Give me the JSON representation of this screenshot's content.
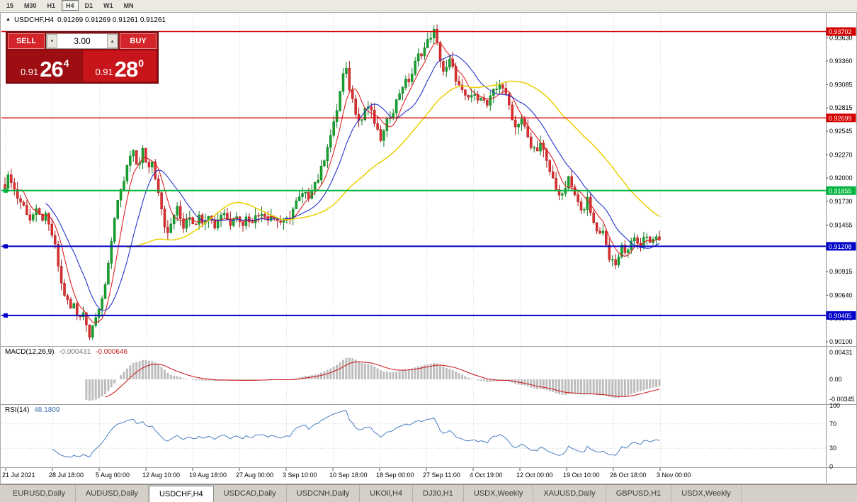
{
  "toolbar": {
    "timeframes": [
      "15",
      "M30",
      "H1",
      "H4",
      "D1",
      "W1",
      "MN"
    ],
    "active": "H4"
  },
  "chart_header": {
    "expand_glyph": "▲",
    "symbol": "USDCHF,H4",
    "ohlc": "0.91269 0.91269 0.91261 0.91261"
  },
  "trade_widget": {
    "sell_label": "SELL",
    "buy_label": "BUY",
    "volume": "3.00",
    "vol_down_glyph": "▾",
    "vol_up_glyph": "▴",
    "sell_price": {
      "small": "0.91",
      "big": "26",
      "sup": "4"
    },
    "buy_price": {
      "small": "0.91",
      "big": "28",
      "sup": "0"
    }
  },
  "chart_data": {
    "type": "candlestick",
    "symbol": "USDCHF",
    "timeframe": "H4",
    "open": "0.91269",
    "high": "0.91269",
    "low": "0.91261",
    "close": "0.91261",
    "ylim": [
      0.90058,
      0.93904
    ],
    "y_ticks": [
      "0.93630",
      "0.93360",
      "0.93085",
      "0.92815",
      "0.92545",
      "0.92270",
      "0.92000",
      "0.91730",
      "0.91455",
      "0.91185",
      "0.90915",
      "0.90640",
      "0.90370",
      "0.90100"
    ],
    "h_lines": [
      {
        "price": 0.93702,
        "label": "0.93702",
        "color": "#d40000",
        "width": 1.4,
        "handle": false
      },
      {
        "price": 0.92699,
        "label": "0.92699",
        "color": "#d40000",
        "width": 1.4,
        "handle": false
      },
      {
        "price": 0.91855,
        "label": "0.91855",
        "color": "#00b43c",
        "width": 2,
        "handle": true
      },
      {
        "price": 0.91208,
        "label": "0.91208",
        "color": "#0000c8",
        "width": 2,
        "handle": true
      },
      {
        "price": 0.90405,
        "label": "0.90405",
        "color": "#0000c8",
        "width": 2,
        "handle": true
      }
    ],
    "num_candles": 210,
    "price_path_anchors": [
      [
        0.0,
        0.9193
      ],
      [
        0.008,
        0.92
      ],
      [
        0.018,
        0.9182
      ],
      [
        0.028,
        0.9165
      ],
      [
        0.038,
        0.9155
      ],
      [
        0.046,
        0.9162
      ],
      [
        0.054,
        0.915
      ],
      [
        0.062,
        0.9158
      ],
      [
        0.07,
        0.9138
      ],
      [
        0.078,
        0.9112
      ],
      [
        0.086,
        0.908
      ],
      [
        0.094,
        0.9058
      ],
      [
        0.1,
        0.9045
      ],
      [
        0.106,
        0.9055
      ],
      [
        0.112,
        0.9038
      ],
      [
        0.118,
        0.9048
      ],
      [
        0.124,
        0.9028
      ],
      [
        0.13,
        0.902
      ],
      [
        0.136,
        0.9042
      ],
      [
        0.142,
        0.9035
      ],
      [
        0.148,
        0.9055
      ],
      [
        0.155,
        0.909
      ],
      [
        0.163,
        0.913
      ],
      [
        0.171,
        0.9165
      ],
      [
        0.179,
        0.9192
      ],
      [
        0.187,
        0.9212
      ],
      [
        0.195,
        0.923
      ],
      [
        0.203,
        0.9215
      ],
      [
        0.21,
        0.9233
      ],
      [
        0.217,
        0.9207
      ],
      [
        0.224,
        0.9225
      ],
      [
        0.232,
        0.9195
      ],
      [
        0.24,
        0.916
      ],
      [
        0.248,
        0.9135
      ],
      [
        0.256,
        0.9152
      ],
      [
        0.264,
        0.9163
      ],
      [
        0.272,
        0.9146
      ],
      [
        0.28,
        0.9157
      ],
      [
        0.288,
        0.9147
      ],
      [
        0.296,
        0.9158
      ],
      [
        0.304,
        0.9148
      ],
      [
        0.312,
        0.916
      ],
      [
        0.32,
        0.9146
      ],
      [
        0.328,
        0.9154
      ],
      [
        0.336,
        0.9161
      ],
      [
        0.344,
        0.9149
      ],
      [
        0.352,
        0.9158
      ],
      [
        0.36,
        0.9147
      ],
      [
        0.368,
        0.9155
      ],
      [
        0.376,
        0.9147
      ],
      [
        0.384,
        0.9157
      ],
      [
        0.392,
        0.9163
      ],
      [
        0.4,
        0.915
      ],
      [
        0.408,
        0.916
      ],
      [
        0.416,
        0.9152
      ],
      [
        0.424,
        0.9143
      ],
      [
        0.432,
        0.9155
      ],
      [
        0.44,
        0.9163
      ],
      [
        0.448,
        0.9172
      ],
      [
        0.456,
        0.9185
      ],
      [
        0.464,
        0.9178
      ],
      [
        0.472,
        0.9192
      ],
      [
        0.48,
        0.9205
      ],
      [
        0.488,
        0.9222
      ],
      [
        0.496,
        0.9245
      ],
      [
        0.504,
        0.927
      ],
      [
        0.512,
        0.9298
      ],
      [
        0.52,
        0.933
      ],
      [
        0.528,
        0.9302
      ],
      [
        0.536,
        0.9275
      ],
      [
        0.544,
        0.9265
      ],
      [
        0.552,
        0.929
      ],
      [
        0.56,
        0.9272
      ],
      [
        0.568,
        0.9256
      ],
      [
        0.576,
        0.9246
      ],
      [
        0.584,
        0.9262
      ],
      [
        0.592,
        0.928
      ],
      [
        0.6,
        0.9295
      ],
      [
        0.61,
        0.9308
      ],
      [
        0.62,
        0.932
      ],
      [
        0.632,
        0.934
      ],
      [
        0.644,
        0.9358
      ],
      [
        0.656,
        0.9368
      ],
      [
        0.664,
        0.9345
      ],
      [
        0.672,
        0.9318
      ],
      [
        0.68,
        0.9335
      ],
      [
        0.688,
        0.9322
      ],
      [
        0.696,
        0.93
      ],
      [
        0.704,
        0.929
      ],
      [
        0.712,
        0.93
      ],
      [
        0.72,
        0.929
      ],
      [
        0.728,
        0.9296
      ],
      [
        0.736,
        0.9286
      ],
      [
        0.744,
        0.9293
      ],
      [
        0.752,
        0.9304
      ],
      [
        0.758,
        0.9318
      ],
      [
        0.764,
        0.9296
      ],
      [
        0.772,
        0.9278
      ],
      [
        0.78,
        0.9262
      ],
      [
        0.788,
        0.927
      ],
      [
        0.796,
        0.9252
      ],
      [
        0.804,
        0.9238
      ],
      [
        0.812,
        0.9232
      ],
      [
        0.82,
        0.9238
      ],
      [
        0.828,
        0.922
      ],
      [
        0.836,
        0.9198
      ],
      [
        0.844,
        0.9185
      ],
      [
        0.852,
        0.918
      ],
      [
        0.86,
        0.9196
      ],
      [
        0.868,
        0.9187
      ],
      [
        0.876,
        0.9171
      ],
      [
        0.884,
        0.9162
      ],
      [
        0.89,
        0.9174
      ],
      [
        0.896,
        0.9157
      ],
      [
        0.902,
        0.9146
      ],
      [
        0.908,
        0.913
      ],
      [
        0.914,
        0.9142
      ],
      [
        0.92,
        0.912
      ],
      [
        0.926,
        0.9103
      ],
      [
        0.932,
        0.9092
      ],
      [
        0.938,
        0.9112
      ],
      [
        0.944,
        0.9126
      ],
      [
        0.95,
        0.911
      ],
      [
        0.956,
        0.9122
      ],
      [
        0.962,
        0.9136
      ],
      [
        0.97,
        0.912
      ],
      [
        0.982,
        0.913
      ],
      [
        1.0,
        0.9126
      ]
    ],
    "moving_averages": [
      {
        "period": 6,
        "color": "#dd2222",
        "width": 1.1
      },
      {
        "period": 14,
        "color": "#2233cc",
        "width": 1.1
      },
      {
        "period": 40,
        "color": "#eccf00",
        "width": 1.5
      }
    ]
  },
  "macd": {
    "label": "MACD(12,26,9)",
    "value_main": "-0.000431",
    "value_signal": "-0.000646",
    "fast": 12,
    "slow": 26,
    "signal": 9,
    "axis_ticks": [
      "0.00431",
      "0.00",
      "-0.00345"
    ]
  },
  "rsi": {
    "label": "RSI(14)",
    "period": 14,
    "value": "48.1809",
    "axis_ticks": [
      "100",
      "70",
      "30",
      "0"
    ],
    "levels": [
      70,
      30
    ]
  },
  "time_axis": {
    "labels": [
      "21 Jul 2021",
      "28 Jul 18:00",
      "5 Aug 00:00",
      "12 Aug 10:00",
      "19 Aug 18:00",
      "27 Aug 00:00",
      "3 Sep 10:00",
      "10 Sep 18:00",
      "18 Sep 00:00",
      "27 Sep 11:00",
      "4 Oct 19:00",
      "12 Oct 00:00",
      "19 Oct 10:00",
      "26 Oct 18:00",
      "3 Nov 00:00"
    ]
  },
  "tabs": {
    "items": [
      "EURUSD,Daily",
      "AUDUSD,Daily",
      "USDCHF,H4",
      "USDCAD,Daily",
      "USDCNH,Daily",
      "UKOil,H4",
      "DJ30,H1",
      "USDX,Weekly",
      "XAUUSD,Daily",
      "GBPUSD,H1",
      "USDX,Weekly"
    ],
    "active_index": 2
  },
  "colors": {
    "candle_up": "#17a22f",
    "candle_up_stroke": "#0a7a1f",
    "candle_down": "#dd3030",
    "candle_down_stroke": "#a81414",
    "macd_hist": "#bdbdbd",
    "macd_signal": "#cc2222",
    "rsi_line": "#4a7fc1",
    "grid": "#d8d8d8",
    "axis_border": "#909090"
  }
}
